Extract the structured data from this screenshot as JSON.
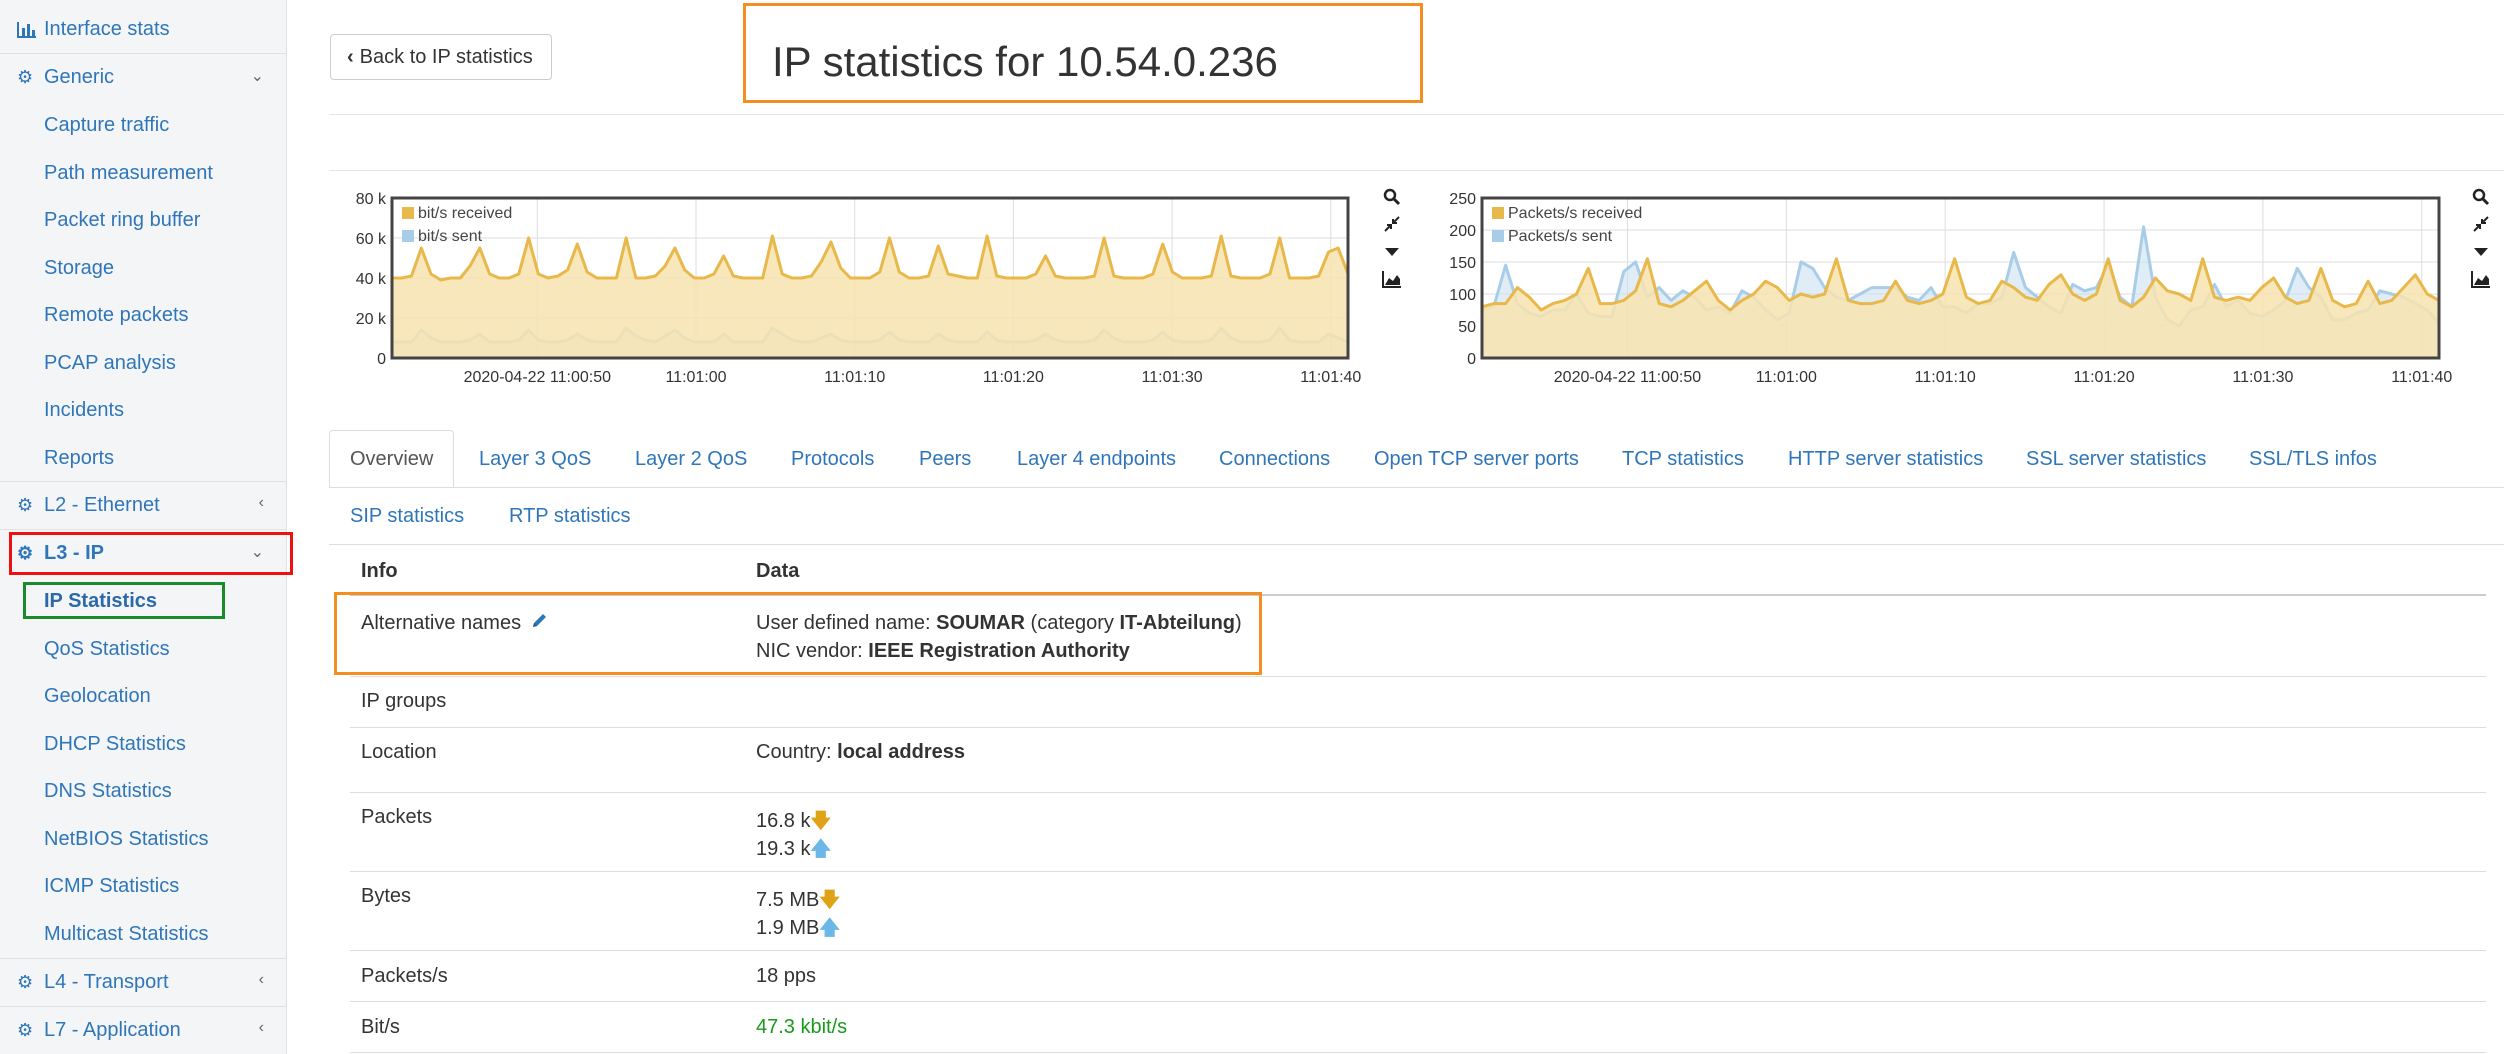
{
  "sidebar": {
    "interface_stats": "Interface stats",
    "generic": "Generic",
    "generic_items": [
      "Capture traffic",
      "Path measurement",
      "Packet ring buffer",
      "Storage",
      "Remote packets",
      "PCAP analysis",
      "Incidents",
      "Reports"
    ],
    "l2": "L2 - Ethernet",
    "l3": "L3 - IP",
    "l3_items": [
      "IP Statistics",
      "QoS Statistics",
      "Geolocation",
      "DHCP Statistics",
      "DNS Statistics",
      "NetBIOS Statistics",
      "ICMP Statistics",
      "Multicast Statistics"
    ],
    "l4": "L4 - Transport",
    "l7": "L7 - Application"
  },
  "header": {
    "back_label": "Back to IP statistics",
    "title": "IP statistics for 10.54.0.236"
  },
  "tabs": [
    "Overview",
    "Layer 3 QoS",
    "Layer 2 QoS",
    "Protocols",
    "Peers",
    "Layer 4 endpoints",
    "Connections",
    "Open TCP server ports",
    "TCP statistics",
    "HTTP server statistics",
    "SSL server statistics",
    "SSL/TLS infos",
    "SIP statistics",
    "RTP statistics"
  ],
  "table": {
    "col_info": "Info",
    "col_data": "Data",
    "rows": {
      "alt_names": {
        "label": "Alternative names",
        "user_prefix": "User defined name: ",
        "user_name": "SOUMAR",
        "cat_prefix": " (category ",
        "category": "IT-Abteilung",
        "cat_suffix": ")",
        "nic_prefix": "NIC vendor: ",
        "nic_vendor": "IEEE Registration Authority"
      },
      "ip_groups": {
        "label": "IP groups"
      },
      "location": {
        "label": "Location",
        "prefix": "Country: ",
        "value": "local address"
      },
      "packets": {
        "label": "Packets",
        "received": "16.8 k",
        "sent": "19.3 k"
      },
      "bytes": {
        "label": "Bytes",
        "received": "7.5 MB",
        "sent": "1.9 MB"
      },
      "pps": {
        "label": "Packets/s",
        "value": "18 pps"
      },
      "bps": {
        "label": "Bit/s",
        "value": "47.3 kbit/s"
      }
    }
  },
  "colors": {
    "received": "#e8b84a",
    "received_fill": "#f8e3b0",
    "sent": "#a8cde8",
    "link": "#2f76b9",
    "highlight_orange": "#f28f20",
    "highlight_red": "#e11111",
    "highlight_green": "#1a8a2a",
    "rate_green": "#1a9a1a"
  },
  "icons": [
    "bar-chart-icon",
    "gear-icon",
    "chevron-down-icon",
    "chevron-left-icon",
    "pencil-icon",
    "search-icon",
    "compress-icon",
    "caret-down-icon",
    "area-chart-icon",
    "arrow-down-icon",
    "arrow-up-icon"
  ],
  "chart_data": [
    {
      "type": "area",
      "title": "",
      "xlabel": "",
      "ylabel": "",
      "ylim": [
        0,
        80000
      ],
      "yticks": [
        "0",
        "20 k",
        "40 k",
        "60 k",
        "80 k"
      ],
      "xticks": [
        "2020-04-22 11:00:50",
        "11:01:00",
        "11:01:10",
        "11:01:20",
        "11:01:30",
        "11:01:40"
      ],
      "legend_position": "top-left",
      "series": [
        {
          "name": "bit/s received",
          "values": [
            40000,
            40000,
            41000,
            55000,
            42000,
            39000,
            40000,
            40000,
            46000,
            55000,
            42000,
            40000,
            40000,
            42000,
            60000,
            42000,
            40000,
            41000,
            44000,
            57000,
            43000,
            40000,
            40000,
            40000,
            60000,
            40000,
            40000,
            41000,
            46000,
            55000,
            44000,
            40000,
            40000,
            42000,
            51000,
            41000,
            40000,
            40000,
            40000,
            61000,
            42000,
            40000,
            40000,
            41000,
            48000,
            58000,
            45000,
            40000,
            40000,
            40000,
            43000,
            60000,
            43000,
            40000,
            40000,
            41000,
            56000,
            42000,
            41000,
            40000,
            40000,
            61000,
            41000,
            40000,
            40000,
            40000,
            42000,
            51000,
            41000,
            40000,
            40000,
            40000,
            41000,
            60000,
            41000,
            40000,
            40000,
            40000,
            42000,
            57000,
            43000,
            40000,
            40000,
            40000,
            41000,
            61000,
            41000,
            40000,
            40000,
            40000,
            42000,
            60000,
            40000,
            40000,
            40000,
            41000,
            53000,
            55000,
            42000
          ]
        },
        {
          "name": "bit/s sent",
          "values": [
            8000,
            8000,
            8000,
            14000,
            10000,
            8000,
            8000,
            8000,
            9000,
            12000,
            8000,
            8000,
            8000,
            9000,
            14000,
            9000,
            8000,
            8000,
            9000,
            12000,
            9000,
            8000,
            8000,
            8000,
            15000,
            11000,
            9000,
            8000,
            11000,
            14000,
            10000,
            8000,
            8000,
            8000,
            12000,
            8000,
            8000,
            8000,
            8000,
            15000,
            12000,
            9000,
            8000,
            8000,
            10000,
            12000,
            9000,
            8000,
            8000,
            8000,
            9000,
            13000,
            9000,
            8000,
            8000,
            8000,
            12000,
            9000,
            8000,
            8000,
            8000,
            13000,
            9000,
            8000,
            8000,
            8000,
            9000,
            12000,
            9000,
            8000,
            8000,
            8000,
            9000,
            14000,
            10000,
            8000,
            8000,
            8000,
            9000,
            13000,
            9000,
            8000,
            8000,
            8000,
            9000,
            15000,
            10000,
            8000,
            8000,
            8000,
            9000,
            15000,
            9000,
            8000,
            8000,
            8000,
            12000,
            10000,
            8000
          ]
        }
      ]
    },
    {
      "type": "area",
      "title": "",
      "xlabel": "",
      "ylabel": "",
      "ylim": [
        0,
        250
      ],
      "yticks": [
        "0",
        "50",
        "100",
        "150",
        "200",
        "250"
      ],
      "xticks": [
        "2020-04-22 11:00:50",
        "11:01:00",
        "11:01:10",
        "11:01:20",
        "11:01:30",
        "11:01:40"
      ],
      "legend_position": "top-left",
      "series": [
        {
          "name": "Packets/s received",
          "values": [
            80,
            85,
            85,
            110,
            95,
            75,
            85,
            90,
            100,
            140,
            85,
            85,
            90,
            105,
            155,
            85,
            80,
            90,
            105,
            120,
            90,
            75,
            90,
            100,
            120,
            110,
            90,
            100,
            95,
            100,
            155,
            90,
            85,
            85,
            90,
            120,
            90,
            85,
            90,
            100,
            155,
            95,
            85,
            90,
            120,
            110,
            95,
            90,
            115,
            130,
            100,
            90,
            100,
            155,
            90,
            80,
            95,
            125,
            105,
            100,
            90,
            155,
            95,
            90,
            95,
            90,
            110,
            125,
            95,
            85,
            90,
            140,
            90,
            80,
            85,
            120,
            85,
            90,
            110,
            130,
            100,
            90
          ]
        },
        {
          "name": "Packets/s sent",
          "values": [
            75,
            80,
            145,
            85,
            70,
            65,
            75,
            75,
            100,
            70,
            65,
            65,
            135,
            150,
            95,
            110,
            90,
            105,
            95,
            75,
            80,
            70,
            105,
            95,
            75,
            60,
            70,
            150,
            140,
            110,
            95,
            90,
            100,
            110,
            110,
            110,
            95,
            90,
            110,
            80,
            80,
            70,
            85,
            85,
            95,
            165,
            110,
            95,
            80,
            70,
            115,
            105,
            110,
            145,
            95,
            80,
            205,
            95,
            60,
            50,
            75,
            80,
            115,
            80,
            90,
            70,
            65,
            75,
            90,
            140,
            110,
            95,
            60,
            60,
            70,
            75,
            105,
            100,
            95,
            85,
            75,
            55
          ]
        }
      ]
    }
  ]
}
